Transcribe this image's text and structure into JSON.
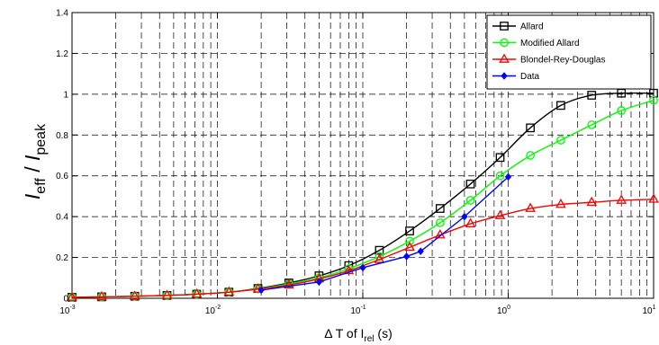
{
  "chart_data": {
    "type": "line",
    "x_scale": "log",
    "xlim": [
      0.001,
      10
    ],
    "ylim": [
      0,
      1.4
    ],
    "grid": true,
    "legend_position": "top-right",
    "xlabel": {
      "prefix": "Δ T of I",
      "sub": "rel",
      "suffix": " (s)"
    },
    "ylabel": {
      "a": "I",
      "a_sub": "eff",
      "sep": " / ",
      "b": "I",
      "b_sub": "peak"
    },
    "x_ticks": [
      {
        "value": 0.001,
        "base": "10",
        "exp": "-3"
      },
      {
        "value": 0.01,
        "base": "10",
        "exp": "-2"
      },
      {
        "value": 0.1,
        "base": "10",
        "exp": "-1"
      },
      {
        "value": 1,
        "base": "10",
        "exp": "0"
      },
      {
        "value": 10,
        "base": "10",
        "exp": "1"
      }
    ],
    "y_ticks": [
      {
        "value": 0,
        "label": "0"
      },
      {
        "value": 0.2,
        "label": "0.2"
      },
      {
        "value": 0.4,
        "label": "0.4"
      },
      {
        "value": 0.6,
        "label": "0.6"
      },
      {
        "value": 0.8,
        "label": "0.8"
      },
      {
        "value": 1.0,
        "label": "1"
      },
      {
        "value": 1.2,
        "label": "1.2"
      },
      {
        "value": 1.4,
        "label": "1.4"
      }
    ],
    "series": [
      {
        "name": "Allard",
        "color": "#000000",
        "marker": "square",
        "x": [
          0.001,
          0.0016,
          0.0027,
          0.0045,
          0.0072,
          0.012,
          0.019,
          0.031,
          0.05,
          0.08,
          0.13,
          0.21,
          0.34,
          0.55,
          0.88,
          1.42,
          2.3,
          3.75,
          6.0,
          10.0
        ],
        "y": [
          0.005,
          0.007,
          0.01,
          0.014,
          0.02,
          0.03,
          0.048,
          0.075,
          0.11,
          0.16,
          0.235,
          0.33,
          0.44,
          0.56,
          0.69,
          0.835,
          0.945,
          0.995,
          1.005,
          1.005
        ]
      },
      {
        "name": "Modified Allard",
        "color": "#00ff00",
        "marker": "circle",
        "x": [
          0.001,
          0.0016,
          0.0027,
          0.0045,
          0.0072,
          0.012,
          0.019,
          0.031,
          0.05,
          0.08,
          0.13,
          0.21,
          0.34,
          0.55,
          0.88,
          1.42,
          2.3,
          3.75,
          6.0,
          10.0
        ],
        "y": [
          0.005,
          0.007,
          0.01,
          0.014,
          0.02,
          0.03,
          0.046,
          0.07,
          0.1,
          0.145,
          0.205,
          0.28,
          0.37,
          0.48,
          0.6,
          0.7,
          0.775,
          0.85,
          0.92,
          0.97
        ]
      },
      {
        "name": "Blondel-Rey-Douglas",
        "color": "#ff0000",
        "marker": "triangle",
        "x": [
          0.001,
          0.0016,
          0.0027,
          0.0045,
          0.0072,
          0.012,
          0.019,
          0.031,
          0.05,
          0.08,
          0.13,
          0.21,
          0.34,
          0.55,
          0.88,
          1.42,
          2.3,
          3.75,
          6.0,
          10.0
        ],
        "y": [
          0.005,
          0.007,
          0.01,
          0.014,
          0.02,
          0.03,
          0.045,
          0.065,
          0.095,
          0.135,
          0.19,
          0.25,
          0.31,
          0.365,
          0.405,
          0.44,
          0.46,
          0.47,
          0.48,
          0.485
        ]
      },
      {
        "name": "Data",
        "color": "#0000ff",
        "marker": "diamond",
        "x": [
          0.02,
          0.05,
          0.1,
          0.2,
          0.25,
          0.5,
          1.0
        ],
        "y": [
          0.04,
          0.08,
          0.15,
          0.205,
          0.23,
          0.4,
          0.595
        ]
      }
    ]
  }
}
